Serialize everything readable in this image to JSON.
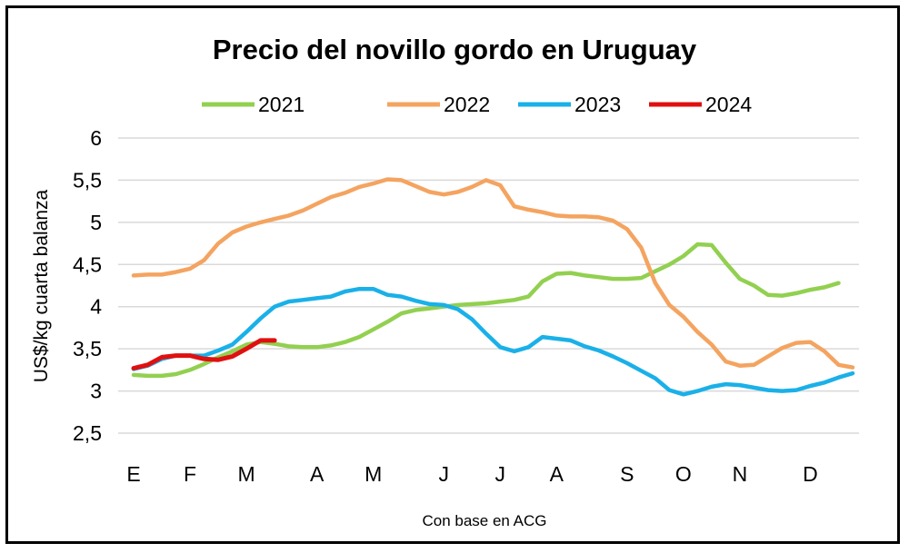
{
  "chart_data": {
    "type": "line",
    "title": "Precio del novillo gordo en Uruguay",
    "ylabel": "US$/kg cuarta balanza",
    "xlabel": "",
    "footnote": "Con base en ACG",
    "ylim": [
      2.5,
      6
    ],
    "yticks": [
      2.5,
      3,
      3.5,
      4,
      4.5,
      5,
      5.5,
      6
    ],
    "ytick_labels": [
      "2,5",
      "3",
      "3,5",
      "4",
      "4,5",
      "5",
      "5,5",
      "6"
    ],
    "xticks": [
      {
        "label": "E",
        "week": 1
      },
      {
        "label": "F",
        "week": 5
      },
      {
        "label": "M",
        "week": 9
      },
      {
        "label": "A",
        "week": 14
      },
      {
        "label": "M",
        "week": 18
      },
      {
        "label": "J",
        "week": 23
      },
      {
        "label": "J",
        "week": 27
      },
      {
        "label": "A",
        "week": 31
      },
      {
        "label": "S",
        "week": 36
      },
      {
        "label": "O",
        "week": 40
      },
      {
        "label": "N",
        "week": 44
      },
      {
        "label": "D",
        "week": 49
      }
    ],
    "xlim": [
      1,
      52
    ],
    "grid": "horizontal",
    "legend": "top",
    "series": [
      {
        "name": "2021",
        "color": "#92d050",
        "values": [
          3.19,
          3.18,
          3.18,
          3.2,
          3.25,
          3.32,
          3.4,
          3.47,
          3.55,
          3.58,
          3.56,
          3.53,
          3.52,
          3.52,
          3.54,
          3.58,
          3.64,
          3.73,
          3.82,
          3.92,
          3.96,
          3.98,
          4.0,
          4.02,
          4.03,
          4.04,
          4.06,
          4.08,
          4.12,
          4.3,
          4.39,
          4.4,
          4.37,
          4.35,
          4.33,
          4.33,
          4.34,
          4.42,
          4.5,
          4.6,
          4.74,
          4.73,
          4.52,
          4.33,
          4.25,
          4.14,
          4.13,
          4.16,
          4.2,
          4.23,
          4.28
        ]
      },
      {
        "name": "2022",
        "color": "#f4a460",
        "values": [
          4.37,
          4.38,
          4.38,
          4.41,
          4.45,
          4.55,
          4.75,
          4.88,
          4.95,
          5.0,
          5.04,
          5.08,
          5.14,
          5.22,
          5.3,
          5.35,
          5.42,
          5.46,
          5.51,
          5.5,
          5.43,
          5.36,
          5.33,
          5.36,
          5.42,
          5.5,
          5.44,
          5.19,
          5.15,
          5.12,
          5.08,
          5.07,
          5.07,
          5.06,
          5.02,
          4.92,
          4.7,
          4.28,
          4.02,
          3.88,
          3.7,
          3.55,
          3.35,
          3.3,
          3.31,
          3.41,
          3.51,
          3.57,
          3.58,
          3.47,
          3.31,
          3.28
        ]
      },
      {
        "name": "2023",
        "color": "#1ab0e8",
        "values": [
          3.26,
          3.3,
          3.38,
          3.42,
          3.42,
          3.42,
          3.48,
          3.55,
          3.7,
          3.86,
          4.0,
          4.06,
          4.08,
          4.1,
          4.12,
          4.18,
          4.21,
          4.21,
          4.14,
          4.12,
          4.07,
          4.03,
          4.02,
          3.97,
          3.85,
          3.68,
          3.52,
          3.47,
          3.52,
          3.64,
          3.62,
          3.6,
          3.53,
          3.48,
          3.41,
          3.33,
          3.24,
          3.15,
          3.01,
          2.96,
          3.0,
          3.05,
          3.08,
          3.07,
          3.04,
          3.01,
          3.0,
          3.01,
          3.06,
          3.1,
          3.16,
          3.21
        ]
      },
      {
        "name": "2024",
        "color": "#e01010",
        "values": [
          3.27,
          3.31,
          3.4,
          3.42,
          3.42,
          3.38,
          3.37,
          3.41,
          3.5,
          3.6,
          3.6
        ]
      }
    ]
  }
}
